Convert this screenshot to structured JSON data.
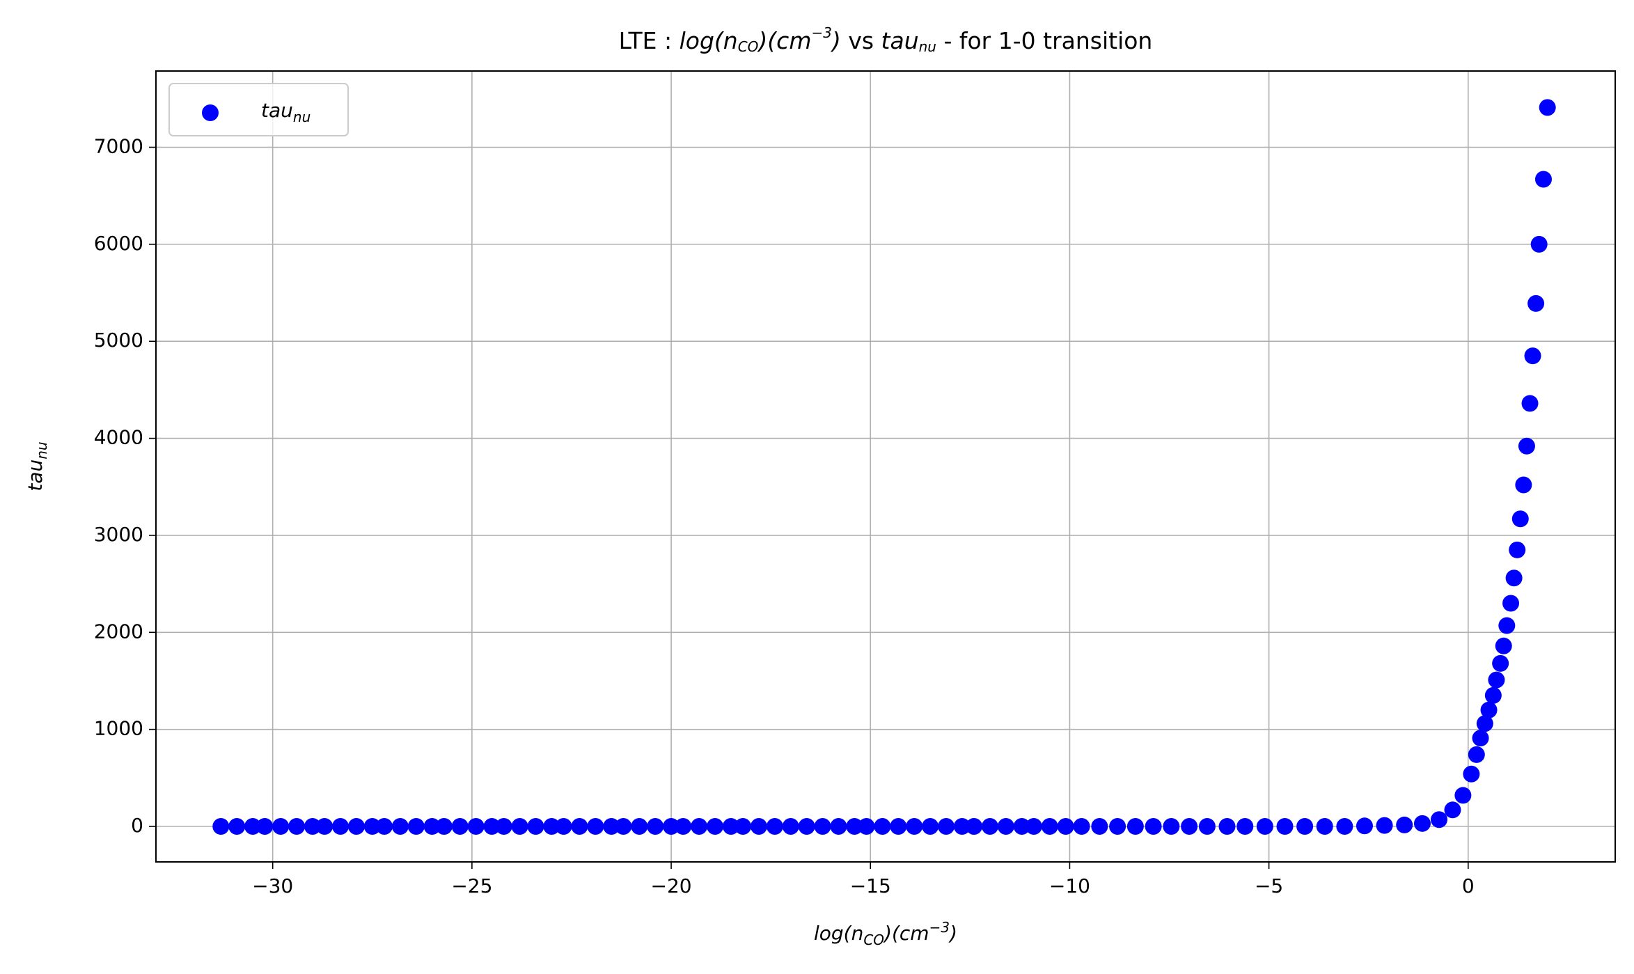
{
  "chart_data": {
    "type": "scatter",
    "title": [
      "LTE : ",
      "log(n",
      "CO",
      ")(cm",
      "−3",
      ")",
      " vs ",
      "tau",
      "nu",
      " - for 1-0 transition"
    ],
    "xlabel": [
      "log(n",
      "CO",
      ")(cm",
      "−3",
      ")"
    ],
    "ylabel": [
      "tau",
      "nu"
    ],
    "xlim": [
      -32.93,
      3.69
    ],
    "ylim": [
      -366,
      7786
    ],
    "xticks": [
      {
        "value": -30,
        "label": "−30"
      },
      {
        "value": -25,
        "label": "−25"
      },
      {
        "value": -20,
        "label": "−20"
      },
      {
        "value": -15,
        "label": "−15"
      },
      {
        "value": -10,
        "label": "−10"
      },
      {
        "value": -5,
        "label": "−5"
      },
      0
    ],
    "yticks": [
      0,
      1000,
      2000,
      3000,
      4000,
      5000,
      6000,
      7000
    ],
    "grid": true,
    "legend": "upper left",
    "series": [
      {
        "name": [
          "tau",
          "nu"
        ],
        "color": "#0000ff",
        "x": [
          -31.3,
          -30.9,
          -30.5,
          -30.2,
          -29.8,
          -29.4,
          -29.0,
          -28.7,
          -28.3,
          -27.9,
          -27.5,
          -27.2,
          -26.8,
          -26.4,
          -26.0,
          -25.7,
          -25.3,
          -24.9,
          -24.5,
          -24.2,
          -23.8,
          -23.4,
          -23.0,
          -22.7,
          -22.3,
          -21.9,
          -21.5,
          -21.2,
          -20.8,
          -20.4,
          -20.0,
          -19.7,
          -19.3,
          -18.9,
          -18.5,
          -18.2,
          -17.8,
          -17.4,
          -17.0,
          -16.6,
          -16.2,
          -15.8,
          -15.4,
          -15.1,
          -14.7,
          -14.3,
          -13.9,
          -13.5,
          -13.1,
          -12.7,
          -12.4,
          -12.0,
          -11.6,
          -11.2,
          -10.9,
          -10.5,
          -10.1,
          -9.7,
          -9.25,
          -8.8,
          -8.35,
          -7.9,
          -7.45,
          -7.0,
          -6.55,
          -6.05,
          -5.6,
          -5.1,
          -4.6,
          -4.1,
          -3.6,
          -3.1,
          -2.6,
          -2.1,
          -1.6,
          -1.15,
          -0.73,
          -0.39,
          -0.13,
          0.08,
          0.21,
          0.31,
          0.42,
          0.52,
          0.63,
          0.71,
          0.81,
          0.89,
          0.97,
          1.07,
          1.15,
          1.23,
          1.31,
          1.39,
          1.47,
          1.55,
          1.62,
          1.7,
          1.78,
          1.89,
          1.99
        ],
        "values": [
          0,
          0,
          0,
          0,
          0,
          0,
          0,
          0,
          0,
          0,
          0,
          0,
          0,
          0,
          0,
          0,
          0,
          0,
          0,
          0,
          0,
          0,
          0,
          0,
          0,
          0,
          0,
          0,
          0,
          0,
          0,
          0,
          0,
          0,
          0,
          0,
          0,
          0,
          0,
          0,
          0,
          0,
          0,
          0,
          0,
          0,
          0,
          0,
          0,
          0,
          0,
          0,
          0,
          0,
          0,
          0,
          0,
          0,
          0,
          0,
          0,
          0,
          0,
          0,
          0,
          0,
          0,
          0,
          0,
          0,
          0,
          0,
          5,
          10,
          15,
          30,
          70,
          170,
          320,
          540,
          740,
          910,
          1060,
          1200,
          1350,
          1510,
          1680,
          1860,
          2070,
          2300,
          2560,
          2850,
          3170,
          3520,
          3920,
          4360,
          4850,
          5390,
          6000,
          6670,
          7410
        ]
      }
    ]
  }
}
